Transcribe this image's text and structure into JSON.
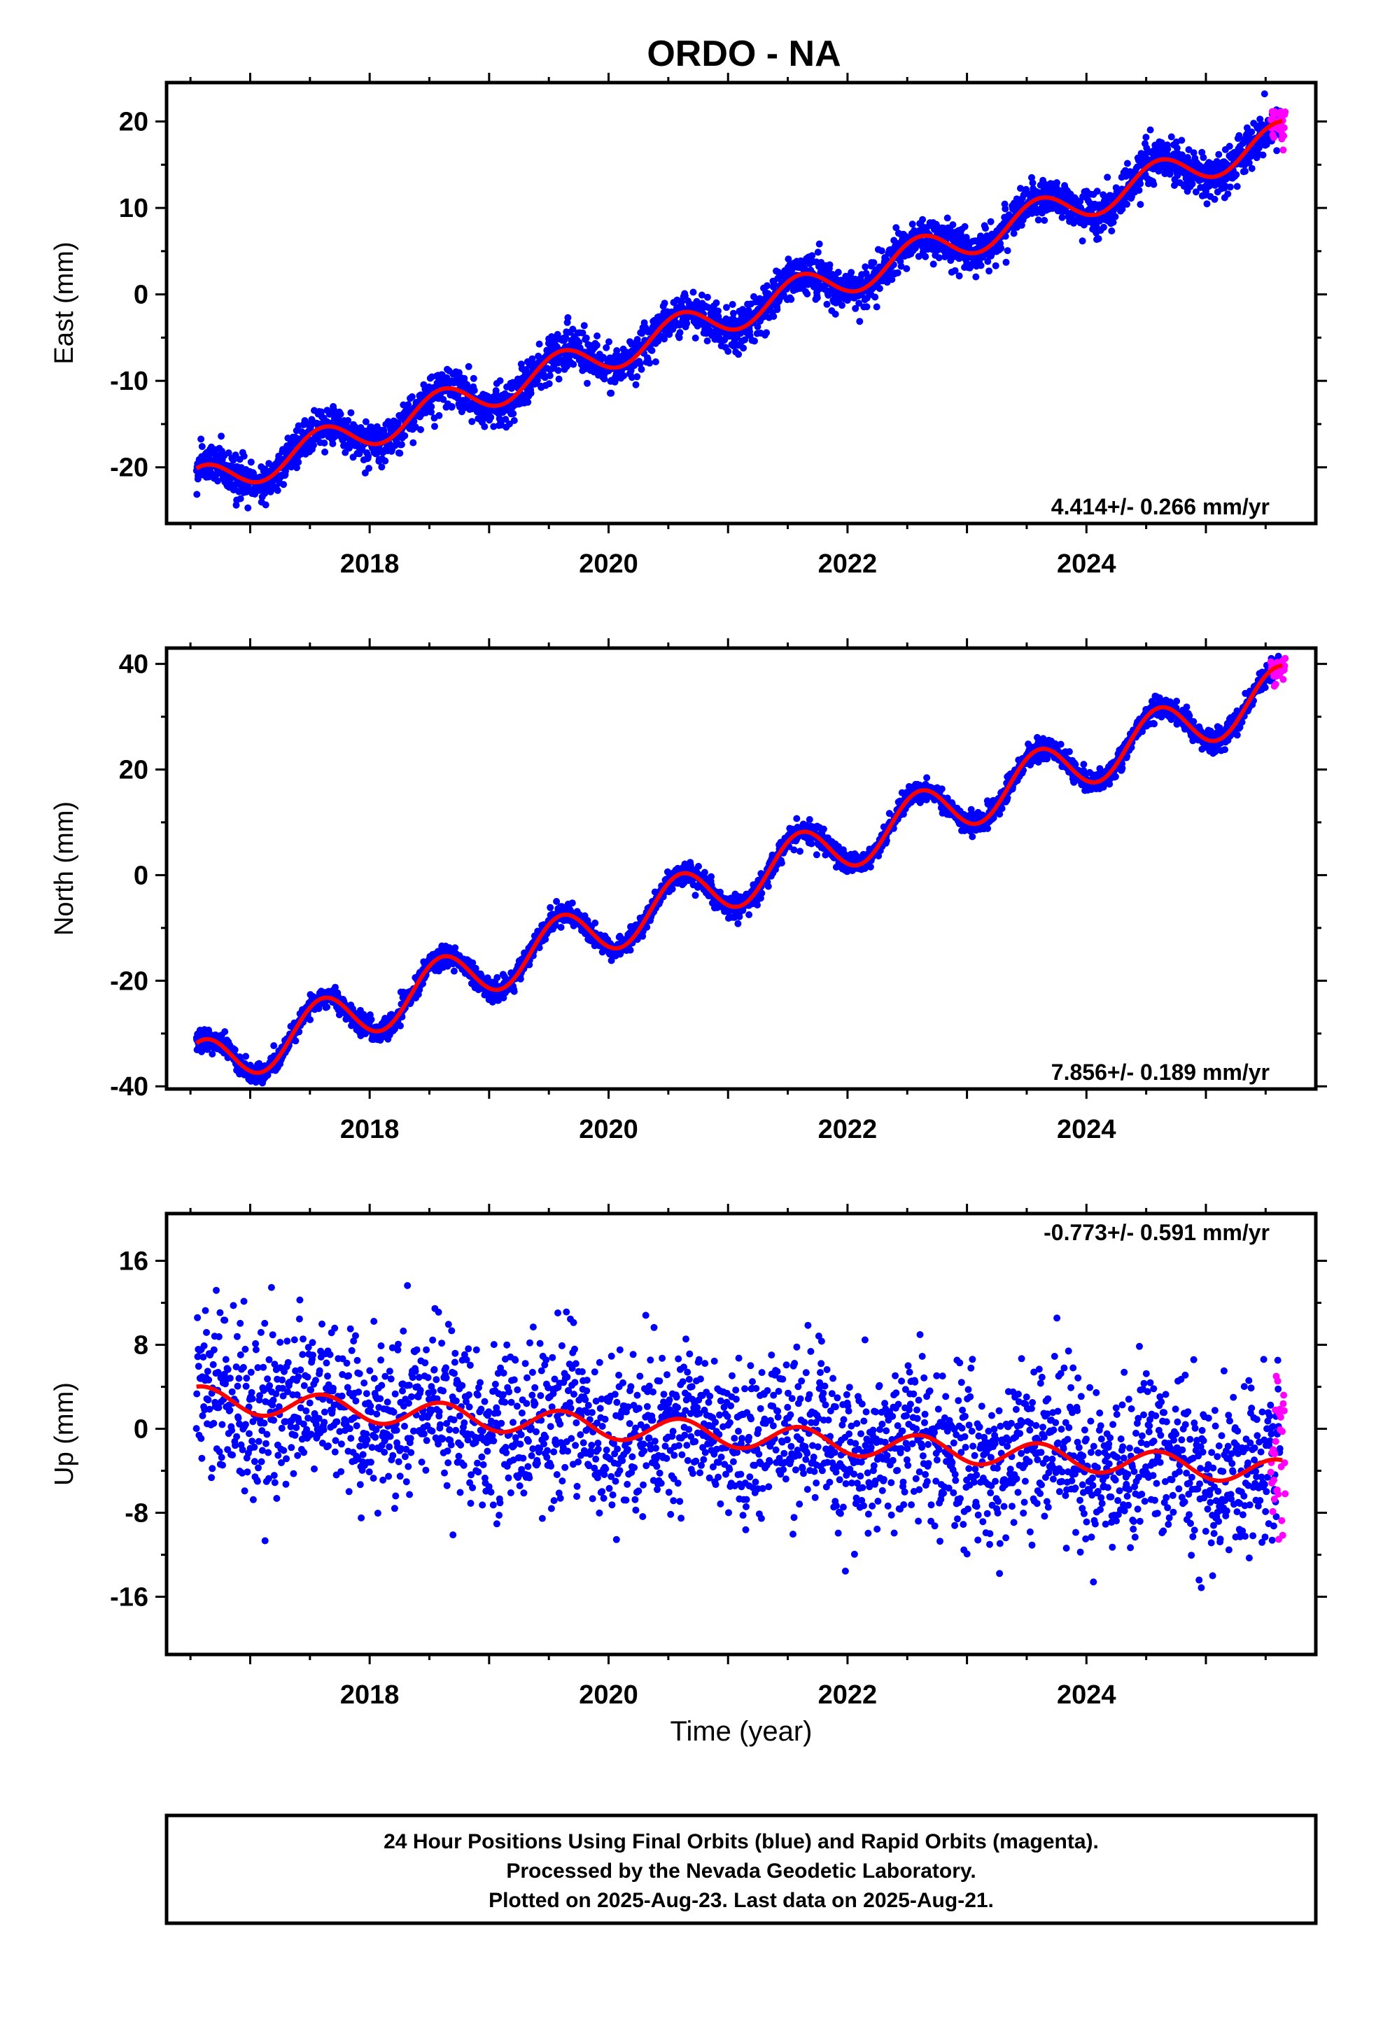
{
  "title": "ORDO - NA",
  "colors": {
    "final_orbits": "#0000ff",
    "rapid_orbits": "#ff00ff",
    "model_fit": "#ff0000",
    "frame": "#000000",
    "background": "#ffffff"
  },
  "xlabel": "Time (year)",
  "x_tick_labels": [
    "2018",
    "2020",
    "2022",
    "2024"
  ],
  "chart_data": [
    {
      "type": "scatter",
      "panel": "east",
      "ylabel": "East (mm)",
      "rate_label": "4.414+/- 0.266 mm/yr",
      "xlim": [
        2016.3,
        2025.92
      ],
      "ylim": [
        -26.5,
        24.5
      ],
      "x_ticks": [
        2018,
        2020,
        2022,
        2024
      ],
      "y_ticks": [
        -20,
        -10,
        0,
        10,
        20
      ],
      "y_tick_labels": [
        "-20",
        "-10",
        "0",
        "10",
        "20"
      ],
      "data_span": [
        2016.55,
        2025.62
      ],
      "rapid_span": [
        2025.52,
        2025.64
      ],
      "trend": {
        "rate": 4.414,
        "value_at_2020": -6.8
      },
      "seasonal": {
        "amplitude": 2.0,
        "peak": 0.6
      },
      "noise": 1.2,
      "series": [
        {
          "name": "Final Orbits",
          "color": "#0000ff",
          "approx_points": 3100
        },
        {
          "name": "Rapid Orbits",
          "color": "#ff00ff",
          "approx_points": 30
        },
        {
          "name": "Model fit",
          "color": "#ff0000"
        }
      ]
    },
    {
      "type": "scatter",
      "panel": "north",
      "ylabel": "North (mm)",
      "rate_label": "7.856+/- 0.189 mm/yr",
      "xlim": [
        2016.3,
        2025.92
      ],
      "ylim": [
        -40.5,
        43
      ],
      "x_ticks": [
        2018,
        2020,
        2022,
        2024
      ],
      "y_ticks": [
        -40,
        -20,
        0,
        20,
        40
      ],
      "y_tick_labels": [
        "-40",
        "-20",
        "0",
        "20",
        "40"
      ],
      "data_span": [
        2016.55,
        2025.62
      ],
      "rapid_span": [
        2025.52,
        2025.64
      ],
      "trend": {
        "rate": 7.856,
        "value_at_2020": -9.5
      },
      "seasonal": {
        "amplitude": 5.0,
        "peak": 0.6
      },
      "noise": 1.0,
      "series": [
        {
          "name": "Final Orbits",
          "color": "#0000ff",
          "approx_points": 3100
        },
        {
          "name": "Rapid Orbits",
          "color": "#ff00ff",
          "approx_points": 30
        },
        {
          "name": "Model fit",
          "color": "#ff0000"
        }
      ]
    },
    {
      "type": "scatter",
      "panel": "up",
      "ylabel": "Up (mm)",
      "rate_label": "-0.773+/- 0.591 mm/yr",
      "xlim": [
        2016.3,
        2025.92
      ],
      "ylim": [
        -21.5,
        20.5
      ],
      "x_ticks": [
        2018,
        2020,
        2022,
        2024
      ],
      "y_ticks": [
        -16,
        -8,
        0,
        8,
        16
      ],
      "y_tick_labels": [
        "-16",
        "-8",
        "0",
        "8",
        "16"
      ],
      "data_span": [
        2016.55,
        2025.62
      ],
      "rapid_span": [
        2025.52,
        2025.64
      ],
      "trend": {
        "rate": -0.773,
        "value_at_2020": 0.2
      },
      "seasonal": {
        "amplitude": 1.2,
        "peak": 0.6
      },
      "noise": 3.8,
      "series": [
        {
          "name": "Final Orbits",
          "color": "#0000ff",
          "approx_points": 2400
        },
        {
          "name": "Rapid Orbits",
          "color": "#ff00ff",
          "approx_points": 30
        },
        {
          "name": "Model fit",
          "color": "#ff0000"
        }
      ]
    }
  ],
  "footer": {
    "line1": "24 Hour Positions Using Final Orbits (blue) and Rapid Orbits (magenta).",
    "line2": "Processed by the Nevada Geodetic Laboratory.",
    "line3": "Plotted on 2025-Aug-23. Last data on 2025-Aug-21."
  }
}
